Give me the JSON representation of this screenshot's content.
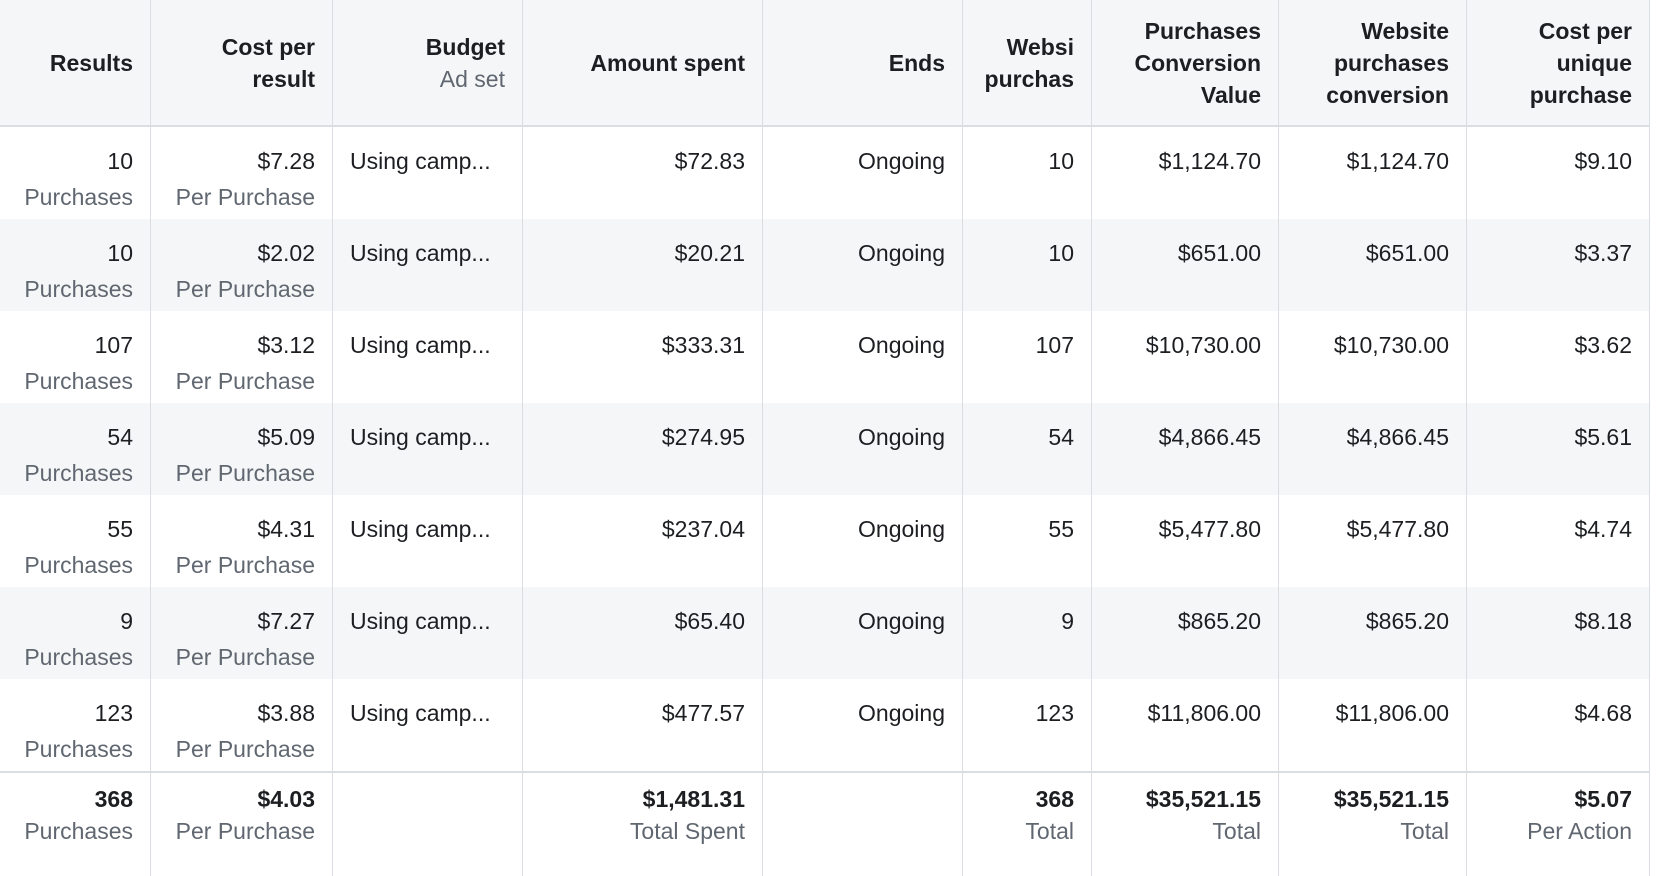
{
  "table": {
    "header": [
      [
        "Results"
      ],
      [
        "Cost per result"
      ],
      [
        "Budget",
        "Ad set"
      ],
      [
        "Amount spent"
      ],
      [
        "Ends"
      ],
      [
        "Websi purchas"
      ],
      [
        "Purchases Conversion Value"
      ],
      [
        "Website purchases conversion"
      ],
      [
        "Cost per unique purchase"
      ]
    ],
    "rows": [
      [
        [
          "10",
          "Purchases"
        ],
        [
          "$7.28",
          "Per Purchase"
        ],
        [
          "Using camp..."
        ],
        [
          "$72.83"
        ],
        [
          "Ongoing"
        ],
        [
          "10"
        ],
        [
          "$1,124.70"
        ],
        [
          "$1,124.70"
        ],
        [
          "$9.10"
        ]
      ],
      [
        [
          "10",
          "Purchases"
        ],
        [
          "$2.02",
          "Per Purchase"
        ],
        [
          "Using camp..."
        ],
        [
          "$20.21"
        ],
        [
          "Ongoing"
        ],
        [
          "10"
        ],
        [
          "$651.00"
        ],
        [
          "$651.00"
        ],
        [
          "$3.37"
        ]
      ],
      [
        [
          "107",
          "Purchases"
        ],
        [
          "$3.12",
          "Per Purchase"
        ],
        [
          "Using camp..."
        ],
        [
          "$333.31"
        ],
        [
          "Ongoing"
        ],
        [
          "107"
        ],
        [
          "$10,730.00"
        ],
        [
          "$10,730.00"
        ],
        [
          "$3.62"
        ]
      ],
      [
        [
          "54",
          "Purchases"
        ],
        [
          "$5.09",
          "Per Purchase"
        ],
        [
          "Using camp..."
        ],
        [
          "$274.95"
        ],
        [
          "Ongoing"
        ],
        [
          "54"
        ],
        [
          "$4,866.45"
        ],
        [
          "$4,866.45"
        ],
        [
          "$5.61"
        ]
      ],
      [
        [
          "55",
          "Purchases"
        ],
        [
          "$4.31",
          "Per Purchase"
        ],
        [
          "Using camp..."
        ],
        [
          "$237.04"
        ],
        [
          "Ongoing"
        ],
        [
          "55"
        ],
        [
          "$5,477.80"
        ],
        [
          "$5,477.80"
        ],
        [
          "$4.74"
        ]
      ],
      [
        [
          "9",
          "Purchases"
        ],
        [
          "$7.27",
          "Per Purchase"
        ],
        [
          "Using camp..."
        ],
        [
          "$65.40"
        ],
        [
          "Ongoing"
        ],
        [
          "9"
        ],
        [
          "$865.20"
        ],
        [
          "$865.20"
        ],
        [
          "$8.18"
        ]
      ],
      [
        [
          "123",
          "Purchases"
        ],
        [
          "$3.88",
          "Per Purchase"
        ],
        [
          "Using camp..."
        ],
        [
          "$477.57"
        ],
        [
          "Ongoing"
        ],
        [
          "123"
        ],
        [
          "$11,806.00"
        ],
        [
          "$11,806.00"
        ],
        [
          "$4.68"
        ]
      ]
    ],
    "totals": [
      [
        "368",
        "Purchases"
      ],
      [
        "$4.03",
        "Per Purchase"
      ],
      null,
      [
        "$1,481.31",
        "Total Spent"
      ],
      null,
      [
        "368",
        "Total"
      ],
      [
        "$35,521.15",
        "Total"
      ],
      [
        "$35,521.15",
        "Total"
      ],
      [
        "$5.07",
        "Per Action"
      ]
    ]
  }
}
